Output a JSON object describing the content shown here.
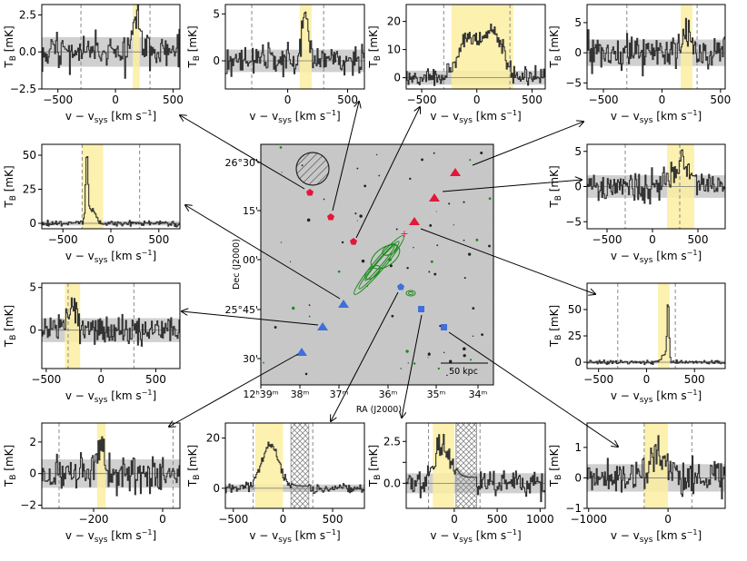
{
  "figure": {
    "ylabel_main": "T",
    "ylabel_sub": "B",
    "ylabel_unit": " [mK]",
    "xlabel_main": "v − v",
    "xlabel_sub": "sys",
    "xlabel_unit": " [km s",
    "xlabel_exp": "−1",
    "xlabel_close": "]"
  },
  "chart_data": [
    {
      "type": "line",
      "id": "p1",
      "title": "",
      "xlabel": "v − v_sys [km s^−1]",
      "ylabel": "T_B [mK]",
      "xlim": [
        -640,
        560
      ],
      "ylim": [
        -2.5,
        3.2
      ],
      "xticks": [
        -500,
        0,
        500
      ],
      "xticklabels": [
        "−500",
        "0",
        "500"
      ],
      "yticks": [
        -2.5,
        0,
        2.5
      ],
      "yticklabels": [
        "−2.5",
        "0.0",
        "2.5"
      ],
      "extra_yticks": [
        0
      ],
      "extra_yticklabels": [
        "0.0"
      ],
      "minor_yticks": [
        -2.5
      ],
      "band": [
        150,
        210
      ],
      "dashed": [
        -300,
        300
      ],
      "noise": 1.0,
      "lines_level": 0,
      "signal": [
        {
          "center": 185,
          "amp": 2.5,
          "width": 30
        }
      ],
      "seed": 11
    },
    {
      "type": "line",
      "id": "p2",
      "xlim": [
        -520,
        640
      ],
      "ylim": [
        -3,
        6
      ],
      "xticks": [
        0,
        500
      ],
      "xticklabels": [
        "0",
        "500"
      ],
      "yticks": [
        0,
        5
      ],
      "yticklabels": [
        "0",
        "5"
      ],
      "band": [
        100,
        200
      ],
      "dashed": [
        -300,
        300
      ],
      "noise": 1.2,
      "signal": [
        {
          "center": 150,
          "amp": 4.5,
          "width": 30
        }
      ],
      "seed": 23
    },
    {
      "type": "line",
      "id": "p3",
      "xlim": [
        -640,
        620
      ],
      "ylim": [
        -4,
        26
      ],
      "xticks": [
        -500,
        0,
        500
      ],
      "xticklabels": [
        "−500",
        "0",
        "500"
      ],
      "yticks": [
        0,
        10,
        20
      ],
      "yticklabels": [
        "0",
        "10",
        "20"
      ],
      "band": [
        -230,
        330
      ],
      "dashed": [
        -300,
        300
      ],
      "noise": 2.5,
      "signal": [
        {
          "center": -80,
          "amp": 14,
          "width": 90
        },
        {
          "center": 150,
          "amp": 16,
          "width": 90
        }
      ],
      "seed": 37
    },
    {
      "type": "line",
      "id": "p4",
      "xlim": [
        -640,
        540
      ],
      "ylim": [
        -6,
        8
      ],
      "xticks": [
        -500,
        0,
        500
      ],
      "xticklabels": [
        "−500",
        "0",
        "500"
      ],
      "yticks": [
        -5,
        0,
        5
      ],
      "yticklabels": [
        "−5",
        "0",
        "5"
      ],
      "band": [
        160,
        260
      ],
      "dashed": [
        -300,
        300
      ],
      "noise": 2.2,
      "signal": [
        {
          "center": 210,
          "amp": 4,
          "width": 40
        }
      ],
      "seed": 41
    },
    {
      "type": "line",
      "id": "p5",
      "xlim": [
        -720,
        720
      ],
      "ylim": [
        -4,
        58
      ],
      "xticks": [
        -500,
        0,
        500
      ],
      "xticklabels": [
        "−500",
        "0",
        "500"
      ],
      "yticks": [
        0,
        25,
        50
      ],
      "yticklabels": [
        "0",
        "25",
        "50"
      ],
      "band": [
        -300,
        -80
      ],
      "dashed": [
        -300,
        300
      ],
      "noise": 1.6,
      "signal": [
        {
          "center": -250,
          "amp": 48,
          "width": 12
        },
        {
          "center": -200,
          "amp": 10,
          "width": 40
        }
      ],
      "seed": 53
    },
    {
      "type": "line",
      "id": "p6",
      "xlim": [
        -720,
        800
      ],
      "ylim": [
        -6,
        6
      ],
      "xticks": [
        -500,
        0,
        500
      ],
      "xticklabels": [
        "−500",
        "0",
        "500"
      ],
      "yticks": [
        -5,
        0,
        5
      ],
      "yticklabels": [
        "−5",
        "0",
        "5"
      ],
      "band": [
        160,
        460
      ],
      "dashed": [
        -300,
        300
      ],
      "noise": 1.6,
      "signal": [
        {
          "center": 320,
          "amp": 2.8,
          "width": 120
        }
      ],
      "seed": 67
    },
    {
      "type": "line",
      "id": "p7",
      "xlim": [
        -540,
        720
      ],
      "ylim": [
        -4.5,
        5.5
      ],
      "xticks": [
        -500,
        0,
        500
      ],
      "xticklabels": [
        "−500",
        "0",
        "500"
      ],
      "yticks": [
        0,
        5
      ],
      "yticklabels": [
        "0",
        "5"
      ],
      "band": [
        -330,
        -190
      ],
      "dashed": [
        -300,
        300
      ],
      "noise": 1.4,
      "signal": [
        {
          "center": -260,
          "amp": 2.8,
          "width": 45
        }
      ],
      "seed": 71
    },
    {
      "type": "line",
      "id": "p8",
      "xlim": [
        -620,
        820
      ],
      "ylim": [
        -6,
        75
      ],
      "xticks": [
        -500,
        0,
        500
      ],
      "xticklabels": [
        "−500",
        "0",
        "500"
      ],
      "yticks": [
        0,
        25,
        50
      ],
      "yticklabels": [
        "0",
        "25",
        "50"
      ],
      "band": [
        120,
        240
      ],
      "dashed": [
        -300,
        300
      ],
      "noise": 1.4,
      "signal": [
        {
          "center": 225,
          "amp": 55,
          "width": 10
        },
        {
          "center": 190,
          "amp": 8,
          "width": 30
        }
      ],
      "seed": 83
    },
    {
      "type": "line",
      "id": "p9",
      "xlim": [
        -350,
        50
      ],
      "ylim": [
        -2.2,
        3.2
      ],
      "xticks": [
        -200,
        0
      ],
      "xticklabels": [
        "−200",
        "0"
      ],
      "yticks": [
        -2,
        0,
        2
      ],
      "yticklabels": [
        "−2",
        "0",
        "2"
      ],
      "band": [
        -190,
        -165
      ],
      "dashed": [
        -300,
        30
      ],
      "noise": 0.9,
      "signal": [
        {
          "center": -178,
          "amp": 2.2,
          "width": 8
        }
      ],
      "seed": 97
    },
    {
      "type": "line",
      "id": "p10",
      "xlim": [
        -580,
        820
      ],
      "ylim": [
        -8,
        26
      ],
      "xticks": [
        -500,
        0,
        500
      ],
      "xticklabels": [
        "−500",
        "0",
        "500"
      ],
      "yticks": [
        0,
        20
      ],
      "yticklabels": [
        "0",
        "20"
      ],
      "band": [
        -280,
        0
      ],
      "dashed": [
        -300,
        300
      ],
      "hatch": [
        80,
        260
      ],
      "noise": 1.5,
      "signal": [
        {
          "center": -130,
          "amp": 17,
          "width": 90
        }
      ],
      "seed": 101
    },
    {
      "type": "line",
      "id": "p11",
      "xlim": [
        -560,
        1060
      ],
      "ylim": [
        -1.5,
        3.6
      ],
      "xticks": [
        0,
        500,
        1000
      ],
      "xticklabels": [
        "0",
        "500",
        "1000"
      ],
      "yticks": [
        0,
        1.25,
        2.5
      ],
      "yticklabels": [
        "0.0",
        "",
        "2.5"
      ],
      "band": [
        -250,
        0
      ],
      "dashed": [
        -300,
        300
      ],
      "hatch": [
        20,
        260
      ],
      "noise": 0.6,
      "signal": [
        {
          "center": -130,
          "amp": 2.4,
          "width": 90
        }
      ],
      "seed": 113
    },
    {
      "type": "line",
      "id": "p12",
      "xlim": [
        -1020,
        720
      ],
      "ylim": [
        -1,
        1.8
      ],
      "xticks": [
        -1000,
        0
      ],
      "xticklabels": [
        "−1000",
        "0"
      ],
      "yticks": [
        -1,
        0,
        1
      ],
      "yticklabels": [
        "−1",
        "0",
        "1"
      ],
      "band": [
        -300,
        0
      ],
      "dashed": [
        -300,
        300
      ],
      "noise": 0.45,
      "signal": [
        {
          "center": -160,
          "amp": 0.7,
          "width": 120
        }
      ],
      "seed": 127
    }
  ],
  "map": {
    "dec_labels": [
      "26°30'",
      "15'",
      "00'",
      "25°45'",
      "30'"
    ],
    "ra_labels": [
      "12ʰ39ᵐ",
      "38ᵐ",
      "37ᵐ",
      "36ᵐ",
      "35ᵐ",
      "34ᵐ"
    ],
    "xlabel": "RA (J2000)",
    "ylabel": "Dec (J2000)",
    "scalebar": "50 kpc",
    "colors": {
      "red": "#e4163a",
      "blue": "#3e6fdb",
      "contour": "#1a8a1a",
      "band": "#fbeea1"
    }
  }
}
